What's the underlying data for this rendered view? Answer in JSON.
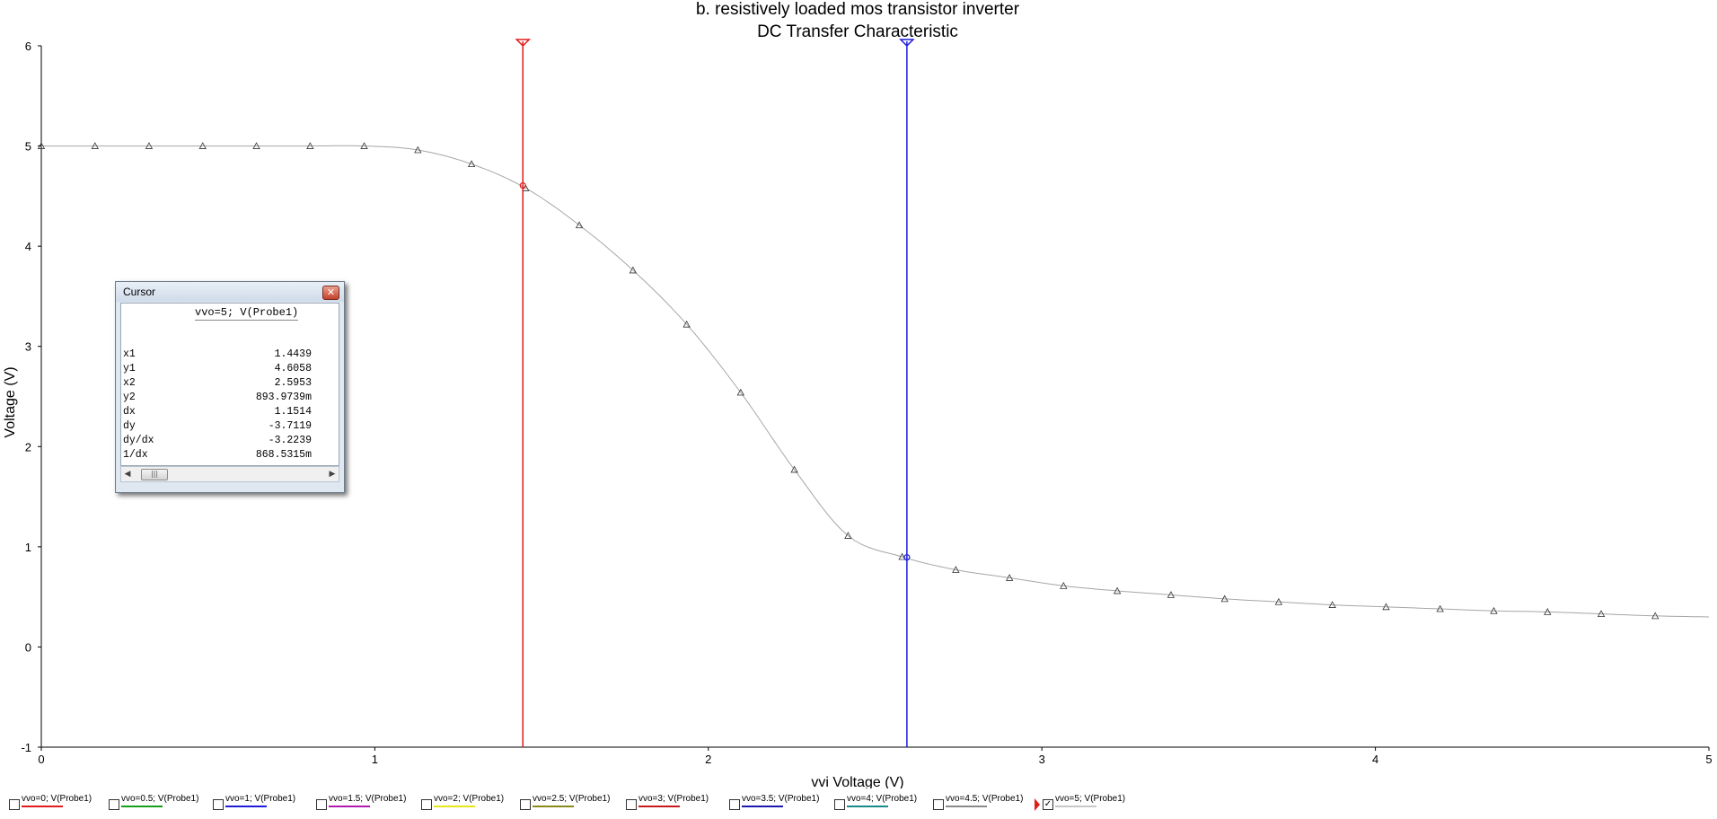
{
  "chart_data": {
    "type": "line",
    "title_lines": [
      "b. resistively loaded mos transistor inverter",
      "DC Transfer Characteristic"
    ],
    "xlabel": "vvi Voltage (V)",
    "ylabel": "Voltage (V)",
    "xlim": [
      0,
      5
    ],
    "ylim": [
      -1,
      6
    ],
    "x_ticks": [
      0,
      1,
      2,
      3,
      4,
      5
    ],
    "y_ticks": [
      -1,
      0,
      1,
      2,
      3,
      4,
      5,
      6
    ],
    "grid": false,
    "series": [
      {
        "name": "vvo=5; V(Probe1)",
        "color": "#a6a6a6",
        "marker": "triangle",
        "x": [
          0.0,
          0.161,
          0.323,
          0.484,
          0.645,
          0.806,
          0.968,
          1.129,
          1.29,
          1.452,
          1.613,
          1.774,
          1.935,
          2.097,
          2.258,
          2.419,
          2.581,
          2.742,
          2.903,
          3.065,
          3.226,
          3.387,
          3.548,
          3.71,
          3.871,
          4.032,
          4.194,
          4.355,
          4.516,
          4.677,
          4.839,
          5.0
        ],
        "y": [
          5.0,
          5.0,
          5.0,
          5.0,
          5.0,
          5.0,
          5.0,
          4.96,
          4.82,
          4.58,
          4.21,
          3.76,
          3.22,
          2.54,
          1.77,
          1.11,
          0.9,
          0.77,
          0.69,
          0.61,
          0.56,
          0.52,
          0.48,
          0.45,
          0.42,
          0.4,
          0.38,
          0.36,
          0.35,
          0.33,
          0.31,
          0.3
        ]
      }
    ],
    "cursors": [
      {
        "x": 1.4439,
        "y": 4.6058,
        "color": "#e21b1b"
      },
      {
        "x": 2.5953,
        "y": 0.8939739,
        "color": "#1d1ddb"
      }
    ]
  },
  "cursor_window": {
    "title": "Cursor",
    "header": "vvo=5; V(Probe1)",
    "rows": [
      {
        "label": "x1",
        "value": "1.4439"
      },
      {
        "label": "y1",
        "value": "4.6058"
      },
      {
        "label": "x2",
        "value": "2.5953"
      },
      {
        "label": "y2",
        "value": "893.9739m"
      },
      {
        "label": "dx",
        "value": "1.1514"
      },
      {
        "label": "dy",
        "value": "-3.7119"
      },
      {
        "label": "dy/dx",
        "value": "-3.2239"
      },
      {
        "label": "1/dx",
        "value": "868.5315m"
      }
    ],
    "scroll_thumb_glyph": "|||"
  },
  "legend": [
    {
      "label": "vvo=0; V(Probe1)",
      "color": "#e21b1b",
      "checked": false
    },
    {
      "label": "vvo=0.5; V(Probe1)",
      "color": "#1a9e1a",
      "checked": false
    },
    {
      "label": "vvo=1; V(Probe1)",
      "color": "#1d1ddb",
      "checked": false
    },
    {
      "label": "vvo=1.5; V(Probe1)",
      "color": "#b01ab0",
      "checked": false
    },
    {
      "label": "vvo=2; V(Probe1)",
      "color": "#e6e61a",
      "checked": false
    },
    {
      "label": "vvo=2.5; V(Probe1)",
      "color": "#8a8a1a",
      "checked": false
    },
    {
      "label": "vvo=3; V(Probe1)",
      "color": "#c81a1a",
      "checked": false
    },
    {
      "label": "vvo=3.5; V(Probe1)",
      "color": "#1a1ab0",
      "checked": false
    },
    {
      "label": "vvo=4; V(Probe1)",
      "color": "#1a8a8a",
      "checked": false
    },
    {
      "label": "vvo=4.5; V(Probe1)",
      "color": "#8a8a8a",
      "checked": false
    },
    {
      "label": "vvo=5; V(Probe1)",
      "color": "#c8c8c8",
      "checked": true,
      "selected": true
    }
  ]
}
